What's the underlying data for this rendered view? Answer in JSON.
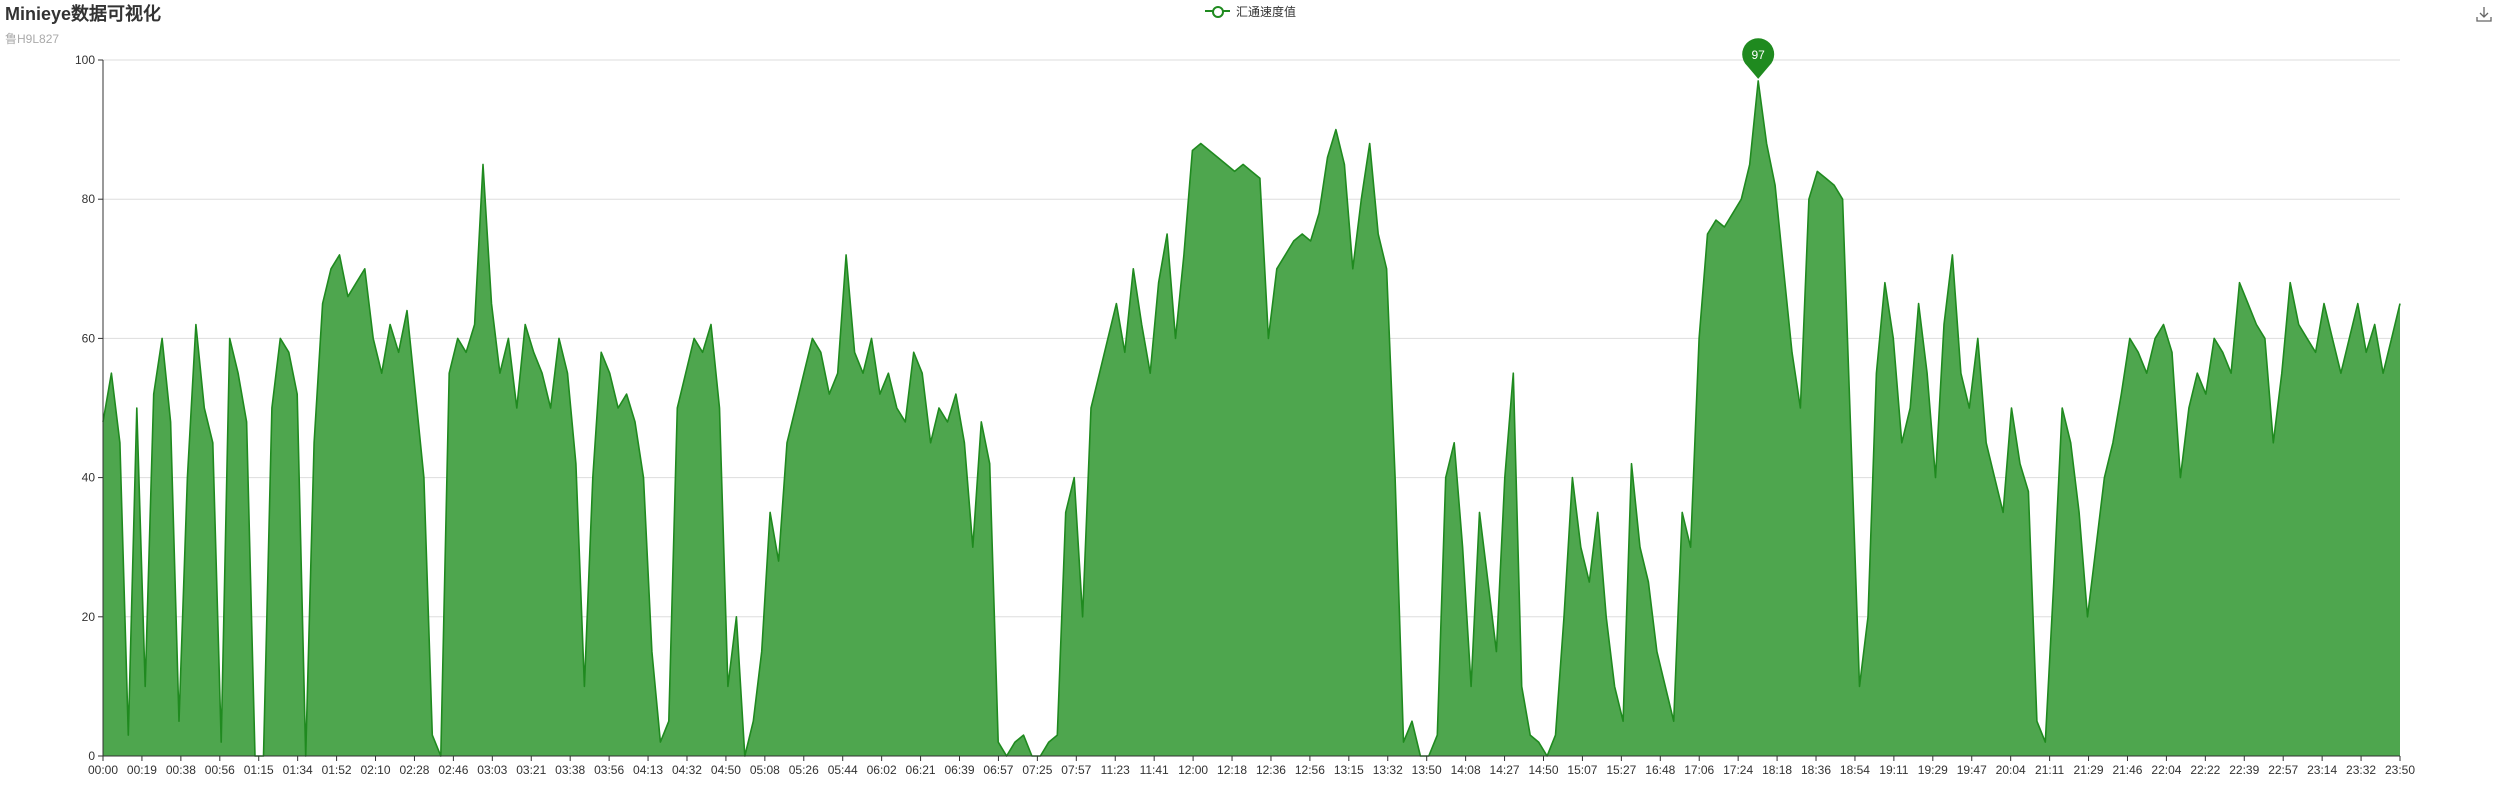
{
  "page": {
    "title": "Minieye数据可视化",
    "subtitle": "鲁H9L827"
  },
  "toolbar": {
    "download_icon": "download-icon"
  },
  "colors": {
    "series_line": "#1f8a1f",
    "series_fill": "#4ea64e",
    "axis": "#333333",
    "grid": "#dddddd",
    "marker": "#1f8a1f",
    "title": "#333333",
    "subtitle": "#aaaaaa"
  },
  "chart_data": {
    "type": "area",
    "title": "Minieye数据可视化",
    "subtitle": "鲁H9L827",
    "xlabel": "",
    "ylabel": "",
    "ylim": [
      0,
      100
    ],
    "yticks": [
      0,
      20,
      40,
      60,
      80,
      100
    ],
    "grid": true,
    "legend_position": "top-center",
    "series": [
      {
        "name": "汇通速度值",
        "values": [
          48,
          55,
          45,
          3,
          50,
          10,
          52,
          60,
          48,
          5,
          40,
          62,
          50,
          45,
          2,
          60,
          55,
          48,
          0,
          0,
          50,
          60,
          58,
          52,
          0,
          45,
          65,
          70,
          72,
          66,
          68,
          70,
          60,
          55,
          62,
          58,
          64,
          52,
          40,
          3,
          0,
          55,
          60,
          58,
          62,
          85,
          65,
          55,
          60,
          50,
          62,
          58,
          55,
          50,
          60,
          55,
          42,
          10,
          40,
          58,
          55,
          50,
          52,
          48,
          40,
          15,
          2,
          5,
          50,
          55,
          60,
          58,
          62,
          50,
          10,
          20,
          0,
          5,
          15,
          35,
          28,
          45,
          50,
          55,
          60,
          58,
          52,
          55,
          72,
          58,
          55,
          60,
          52,
          55,
          50,
          48,
          58,
          55,
          45,
          50,
          48,
          52,
          45,
          30,
          48,
          42,
          2,
          0,
          2,
          3,
          0,
          0,
          2,
          3,
          35,
          40,
          20,
          50,
          55,
          60,
          65,
          58,
          70,
          62,
          55,
          68,
          75,
          60,
          72,
          87,
          88,
          87,
          86,
          85,
          84,
          85,
          84,
          83,
          60,
          70,
          72,
          74,
          75,
          74,
          78,
          86,
          90,
          85,
          70,
          80,
          88,
          75,
          70,
          40,
          2,
          5,
          0,
          0,
          3,
          40,
          45,
          30,
          10,
          35,
          25,
          15,
          40,
          55,
          10,
          3,
          2,
          0,
          3,
          20,
          40,
          30,
          25,
          35,
          20,
          10,
          5,
          42,
          30,
          25,
          15,
          10,
          5,
          35,
          30,
          60,
          75,
          77,
          76,
          78,
          80,
          85,
          97,
          88,
          82,
          70,
          58,
          50,
          80,
          84,
          83,
          82,
          80,
          45,
          10,
          20,
          55,
          68,
          60,
          45,
          50,
          65,
          55,
          40,
          62,
          72,
          55,
          50,
          60,
          45,
          40,
          35,
          50,
          42,
          38,
          5,
          2,
          25,
          50,
          45,
          35,
          20,
          30,
          40,
          45,
          52,
          60,
          58,
          55,
          60,
          62,
          58,
          40,
          50,
          55,
          52,
          60,
          58,
          55,
          68,
          65,
          62,
          60,
          45,
          55,
          68,
          62,
          60,
          58,
          65,
          60,
          55,
          60,
          65,
          58,
          62,
          55,
          60,
          65
        ]
      }
    ],
    "max_marker": {
      "value": 97,
      "label": "97"
    },
    "x_tick_labels": [
      "00:00",
      "00:19",
      "00:38",
      "00:56",
      "01:15",
      "01:34",
      "01:52",
      "02:10",
      "02:28",
      "02:46",
      "03:03",
      "03:21",
      "03:38",
      "03:56",
      "04:13",
      "04:32",
      "04:50",
      "05:08",
      "05:26",
      "05:44",
      "06:02",
      "06:21",
      "06:39",
      "06:57",
      "07:25",
      "07:57",
      "11:23",
      "11:41",
      "12:00",
      "12:18",
      "12:36",
      "12:56",
      "13:15",
      "13:32",
      "13:50",
      "14:08",
      "14:27",
      "14:50",
      "15:07",
      "15:27",
      "16:48",
      "17:06",
      "17:24",
      "18:18",
      "18:36",
      "18:54",
      "19:11",
      "19:29",
      "19:47",
      "20:04",
      "21:11",
      "21:29",
      "21:46",
      "22:04",
      "22:22",
      "22:39",
      "22:57",
      "23:14",
      "23:32",
      "23:50"
    ]
  }
}
